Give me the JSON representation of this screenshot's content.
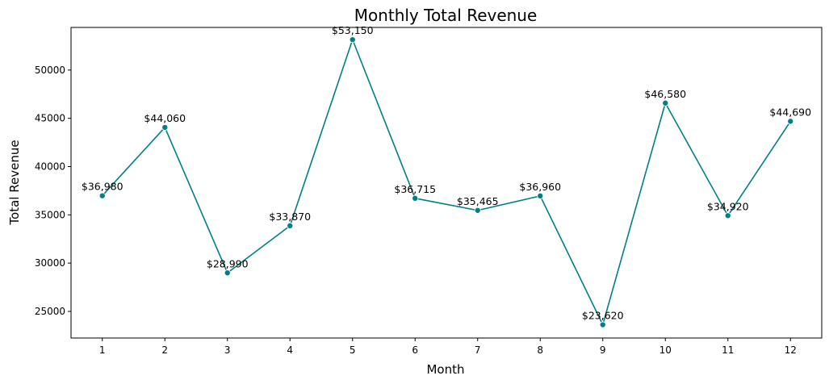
{
  "chart_data": {
    "type": "line",
    "title": "Monthly Total Revenue",
    "xlabel": "Month",
    "ylabel": "Total Revenue",
    "x": [
      1,
      2,
      3,
      4,
      5,
      6,
      7,
      8,
      9,
      10,
      11,
      12
    ],
    "x_ticks": [
      "1",
      "2",
      "3",
      "4",
      "5",
      "6",
      "7",
      "8",
      "9",
      "10",
      "11",
      "12"
    ],
    "y_ticks": [
      25000,
      30000,
      35000,
      40000,
      45000,
      50000
    ],
    "xlim": [
      0.5,
      12.5
    ],
    "ylim": [
      22243,
      54415
    ],
    "grid": false,
    "legend": "none",
    "series": [
      {
        "values": [
          36980,
          44060,
          28990,
          33870,
          53150,
          36715,
          35465,
          36960,
          23620,
          46580,
          34920,
          44690
        ],
        "labels": [
          "$36,980",
          "$44,060",
          "$28,990",
          "$33,870",
          "$53,150",
          "$36,715",
          "$35,465",
          "$36,960",
          "$23,620",
          "$46,580",
          "$34,920",
          "$44,690"
        ],
        "color": "#008080"
      }
    ]
  }
}
